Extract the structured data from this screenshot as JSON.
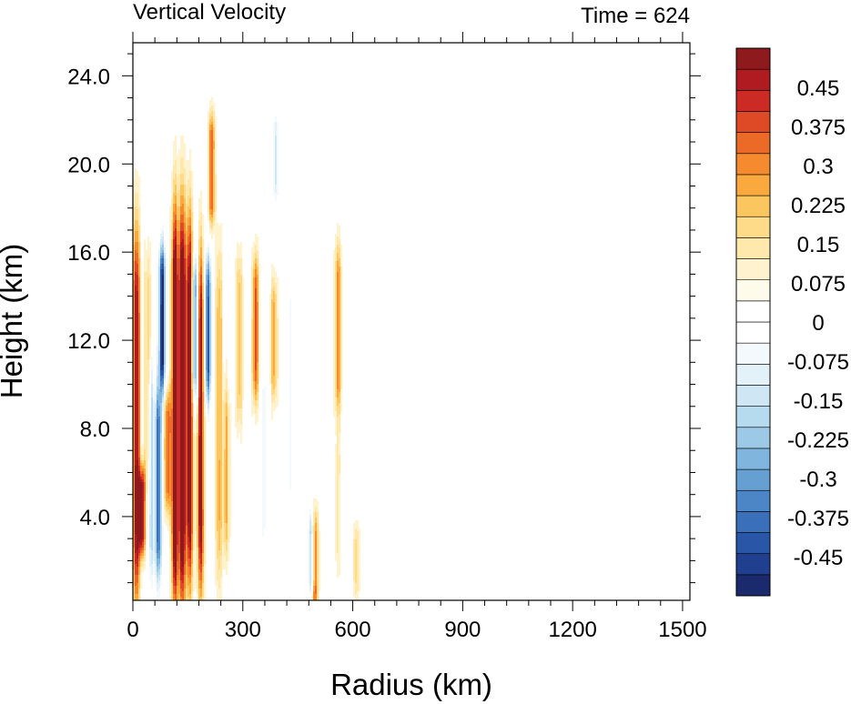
{
  "chart_data": {
    "type": "heatmap",
    "title": "Vertical Velocity",
    "time_label": "Time = 624",
    "xlabel": "Radius (km)",
    "ylabel": "Height (km)",
    "xlim": [
      0,
      1520
    ],
    "ylim": [
      0.2,
      25.5
    ],
    "x_ticks": [
      "0",
      "300",
      "600",
      "900",
      "1200",
      "1500"
    ],
    "x_tick_values": [
      0,
      300,
      600,
      900,
      1200,
      1500
    ],
    "y_ticks": [
      "4.0",
      "8.0",
      "12.0",
      "16.0",
      "20.0",
      "24.0"
    ],
    "y_tick_values": [
      4,
      8,
      12,
      16,
      20,
      24
    ],
    "colorbar": {
      "min": -0.525,
      "max": 0.525,
      "step": 0.0375,
      "labels": [
        "0.45",
        "0.375",
        "0.3",
        "0.225",
        "0.15",
        "0.075",
        "0",
        "-0.075",
        "-0.15",
        "-0.225",
        "-0.3",
        "-0.375",
        "-0.45"
      ],
      "label_values": [
        0.45,
        0.375,
        0.3,
        0.225,
        0.15,
        0.075,
        0,
        -0.075,
        -0.15,
        -0.225,
        -0.3,
        -0.375,
        -0.45
      ],
      "colors": [
        "#1a2a6c",
        "#213f8f",
        "#2a56a8",
        "#3a6fba",
        "#4d86c6",
        "#66a0d3",
        "#80b6de",
        "#9ccae6",
        "#b6daee",
        "#cfe7f4",
        "#e3f1f9",
        "#f3f9fc",
        "#ffffff",
        "#ffffff",
        "#fffbea",
        "#fff3cf",
        "#ffe8ab",
        "#fddb88",
        "#fbc55f",
        "#f9a93d",
        "#f58b2e",
        "#ec6a28",
        "#df4a26",
        "#cc2b25",
        "#b01a21",
        "#8e1a1d"
      ]
    },
    "features": [
      {
        "r": 10,
        "z0": 1.0,
        "z1": 16.0,
        "w": 0.45
      },
      {
        "r": 25,
        "z0": 3.0,
        "z1": 5.5,
        "w": 0.42
      },
      {
        "r": 40,
        "z0": 6.0,
        "z1": 15.0,
        "w": 0.15
      },
      {
        "r": 50,
        "z0": 2.0,
        "z1": 10.0,
        "w": -0.2
      },
      {
        "r": 80,
        "z0": 10.5,
        "z1": 15.5,
        "w": -0.5
      },
      {
        "r": 70,
        "z0": 2.0,
        "z1": 9.0,
        "w": -0.4
      },
      {
        "r": 95,
        "z0": 5.0,
        "z1": 9.0,
        "w": 0.3
      },
      {
        "r": 115,
        "z0": 1.0,
        "z1": 16.8,
        "w": 0.55
      },
      {
        "r": 135,
        "z0": 1.0,
        "z1": 17.0,
        "w": 0.55
      },
      {
        "r": 155,
        "z0": 2.0,
        "z1": 16.5,
        "w": 0.5
      },
      {
        "r": 170,
        "z0": 10.0,
        "z1": 15.0,
        "w": -0.35
      },
      {
        "r": 185,
        "z0": 1.5,
        "z1": 15.0,
        "w": 0.45
      },
      {
        "r": 205,
        "z0": 10.0,
        "z1": 15.0,
        "w": -0.4
      },
      {
        "r": 215,
        "z0": 18.0,
        "z1": 21.5,
        "w": 0.3
      },
      {
        "r": 235,
        "z0": 2.0,
        "z1": 15.0,
        "w": 0.2
      },
      {
        "r": 255,
        "z0": 3.0,
        "z1": 9.0,
        "w": 0.18
      },
      {
        "r": 290,
        "z0": 9.0,
        "z1": 15.0,
        "w": 0.18
      },
      {
        "r": 335,
        "z0": 10.0,
        "z1": 15.0,
        "w": 0.3
      },
      {
        "r": 355,
        "z0": 3.0,
        "z1": 10.0,
        "w": -0.1
      },
      {
        "r": 385,
        "z0": 10.0,
        "z1": 14.0,
        "w": 0.2
      },
      {
        "r": 390,
        "z0": 19.0,
        "z1": 21.5,
        "w": -0.15
      },
      {
        "r": 430,
        "z0": 5.0,
        "z1": 14.0,
        "w": -0.08
      },
      {
        "r": 495,
        "z0": 0.5,
        "z1": 3.5,
        "w": 0.5
      },
      {
        "r": 490,
        "z0": 1.0,
        "z1": 3.5,
        "w": -0.45
      },
      {
        "r": 560,
        "z0": 9.5,
        "z1": 15.5,
        "w": 0.25
      },
      {
        "r": 560,
        "z0": 2.0,
        "z1": 7.0,
        "w": 0.08
      },
      {
        "r": 610,
        "z0": 1.0,
        "z1": 3.0,
        "w": 0.12
      },
      {
        "r": 680,
        "z0": 3.0,
        "z1": 12.0,
        "w": -0.06
      },
      {
        "r": 760,
        "z0": 5.0,
        "z1": 12.0,
        "w": -0.05
      },
      {
        "r": 850,
        "z0": 8.0,
        "z1": 15.0,
        "w": -0.04
      }
    ]
  }
}
